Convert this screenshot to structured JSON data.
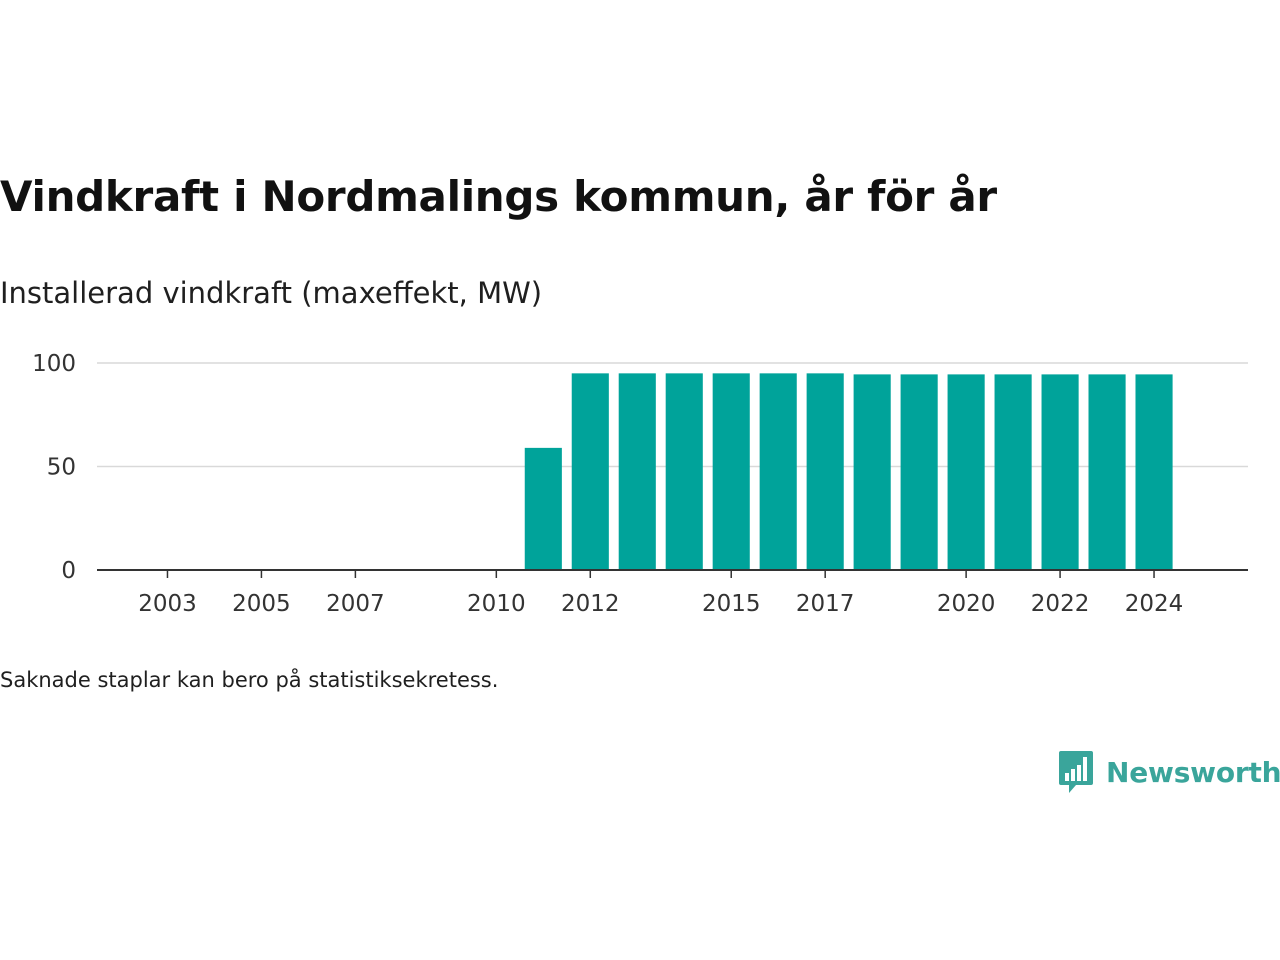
{
  "header": {
    "title": "Vindkraft i Nordmalings kommun, år för år",
    "subtitle": "Installerad vindkraft (maxeffekt, MW)"
  },
  "footnote": "Saknade staplar kan bero på statistiksekretess.",
  "brand": {
    "name": "Newsworthy",
    "color": "#3aa59b"
  },
  "chart_data": {
    "type": "bar",
    "bar_color": "#00a39a",
    "x": [
      2011,
      2012,
      2013,
      2014,
      2015,
      2016,
      2017,
      2018,
      2019,
      2020,
      2021,
      2022,
      2023,
      2024
    ],
    "values": [
      59,
      95,
      95,
      95,
      95,
      95,
      95,
      94.5,
      94.5,
      94.5,
      94.5,
      94.5,
      94.5,
      94.5
    ],
    "x_ticks": [
      2003,
      2005,
      2007,
      2010,
      2012,
      2015,
      2017,
      2020,
      2022,
      2024
    ],
    "y_ticks": [
      0,
      50,
      100
    ],
    "xlim": [
      2001.5,
      2026
    ],
    "ylim": [
      0,
      100
    ],
    "grid": "horizontal",
    "legend": "none"
  }
}
